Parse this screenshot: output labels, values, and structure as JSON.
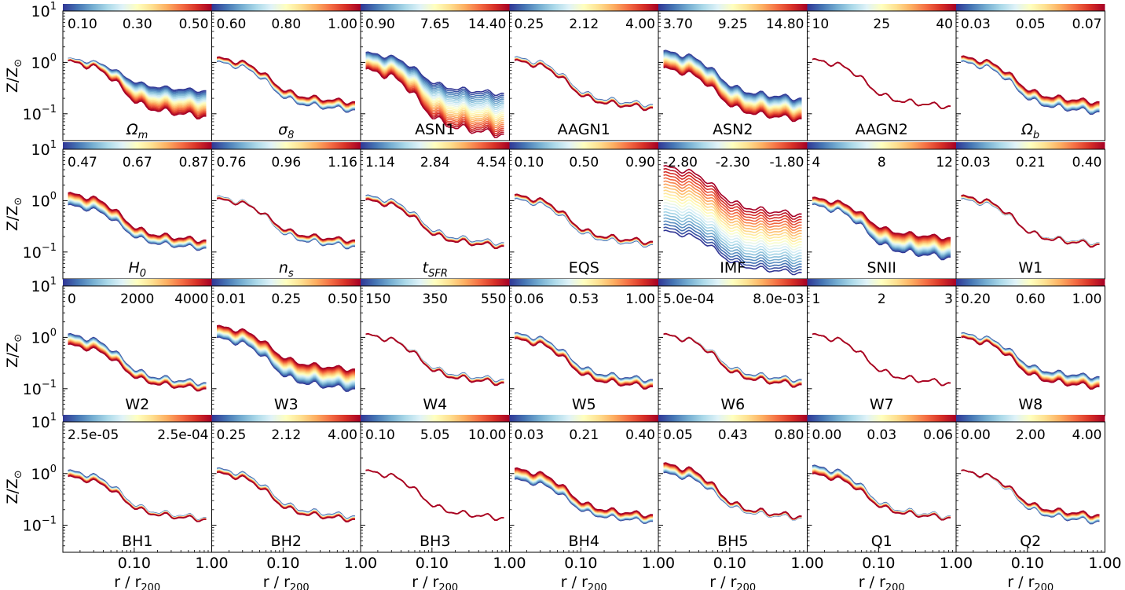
{
  "chart_data": {
    "type": "line",
    "title": "",
    "xlabel": "r / r200",
    "xlabel_main": "r / r",
    "xlabel_sub": "200",
    "ylabel": "Z/Z⊙",
    "ylabel_main": "Z/Z",
    "ylabel_sym": "⊙",
    "xscale": "log",
    "yscale": "log",
    "xlim": [
      0.012,
      1.0
    ],
    "ylim": [
      0.03,
      10
    ],
    "x_ticks": [
      "0.10",
      "1.00"
    ],
    "y_ticks": [
      {
        "base": "10",
        "exp": "1"
      },
      {
        "base": "10",
        "exp": "0"
      },
      {
        "base": "10",
        "exp": "−1"
      }
    ],
    "colormap": "RdYlBu_r",
    "colormap_stops": [
      "#313695",
      "#4575b4",
      "#74add1",
      "#abd9e9",
      "#e0f3f8",
      "#ffffbf",
      "#fee090",
      "#fdae61",
      "#f46d43",
      "#d73027",
      "#a50026"
    ],
    "axis_color": "#000000",
    "panels": [
      {
        "label": "Ωm",
        "lab_main": "Ω",
        "lab_sub": "m",
        "lab_italic": true,
        "cticks": [
          "0.10",
          "0.30",
          "0.50"
        ],
        "r_inner": [
          1.15,
          1.02
        ],
        "r_outer": [
          0.28,
          0.09
        ]
      },
      {
        "label": "σ8",
        "lab_main": "σ",
        "lab_sub": "8",
        "lab_italic": true,
        "cticks": [
          "0.60",
          "0.80",
          "1.00"
        ],
        "r_inner": [
          1.0,
          1.2
        ],
        "r_outer": [
          0.12,
          0.17
        ]
      },
      {
        "label": "ASN1",
        "lab_main": "ASN1",
        "lab_sub": "",
        "lab_italic": false,
        "cticks": [
          "0.90",
          "7.65",
          "14.40"
        ],
        "r_inner": [
          1.5,
          0.7
        ],
        "r_outer": [
          0.25,
          0.04
        ]
      },
      {
        "label": "AAGN1",
        "lab_main": "AAGN1",
        "lab_sub": "",
        "lab_italic": false,
        "cticks": [
          "0.25",
          "2.12",
          "4.00"
        ],
        "r_inner": [
          1.2,
          1.05
        ],
        "r_outer": [
          0.15,
          0.13
        ]
      },
      {
        "label": "ASN2",
        "lab_main": "ASN2",
        "lab_sub": "",
        "lab_italic": false,
        "cticks": [
          "3.70",
          "9.25",
          "14.80"
        ],
        "r_inner": [
          1.6,
          0.75
        ],
        "r_outer": [
          0.2,
          0.08
        ]
      },
      {
        "label": "AAGN2",
        "lab_main": "AAGN2",
        "lab_sub": "",
        "lab_italic": false,
        "cticks": [
          "10",
          "25",
          "40"
        ],
        "r_inner": [
          1.1,
          1.1
        ],
        "r_outer": [
          0.14,
          0.14
        ]
      },
      {
        "label": "Ωb",
        "lab_main": "Ω",
        "lab_sub": "b",
        "lab_italic": true,
        "cticks": [
          "0.03",
          "0.05",
          "0.07"
        ],
        "r_inner": [
          1.0,
          1.25
        ],
        "r_outer": [
          0.11,
          0.17
        ]
      },
      {
        "label": "H0",
        "lab_main": "H",
        "lab_sub": "0",
        "lab_italic": true,
        "cticks": [
          "0.47",
          "0.67",
          "0.87"
        ],
        "r_inner": [
          0.8,
          1.35
        ],
        "r_outer": [
          0.12,
          0.17
        ]
      },
      {
        "label": "ns",
        "lab_main": "n",
        "lab_sub": "s",
        "lab_italic": true,
        "cticks": [
          "0.76",
          "0.96",
          "1.16"
        ],
        "r_inner": [
          1.15,
          1.05
        ],
        "r_outer": [
          0.13,
          0.17
        ]
      },
      {
        "label": "tSFR",
        "lab_main": "t",
        "lab_sub": "SFR",
        "lab_italic": true,
        "cticks": [
          "1.14",
          "2.84",
          "4.54"
        ],
        "r_inner": [
          1.2,
          1.0
        ],
        "r_outer": [
          0.15,
          0.13
        ]
      },
      {
        "label": "EQS",
        "lab_main": "EQS",
        "lab_sub": "",
        "lab_italic": false,
        "cticks": [
          "0.10",
          "0.50",
          "0.90"
        ],
        "r_inner": [
          1.05,
          1.25
        ],
        "r_outer": [
          0.14,
          0.16
        ]
      },
      {
        "label": "IMF",
        "lab_main": "IMF",
        "lab_sub": "",
        "lab_italic": false,
        "cticks": [
          "-2.80",
          "-2.30",
          "-1.80"
        ],
        "r_inner": [
          0.25,
          4.5
        ],
        "r_outer": [
          0.04,
          0.55
        ]
      },
      {
        "label": "SNII",
        "lab_main": "SNII",
        "lab_sub": "",
        "lab_italic": false,
        "cticks": [
          "4",
          "8",
          "12"
        ],
        "r_inner": [
          0.8,
          1.1
        ],
        "r_outer": [
          0.08,
          0.19
        ]
      },
      {
        "label": "W1",
        "lab_main": "W1",
        "lab_sub": "",
        "lab_italic": false,
        "cticks": [
          "0.03",
          "0.21",
          "0.40"
        ],
        "r_inner": [
          1.05,
          1.2
        ],
        "r_outer": [
          0.15,
          0.14
        ]
      },
      {
        "label": "W2",
        "lab_main": "W2",
        "lab_sub": "",
        "lab_italic": false,
        "cticks": [
          "0",
          "2000",
          "4000"
        ],
        "r_inner": [
          1.1,
          0.7
        ],
        "r_outer": [
          0.13,
          0.1
        ]
      },
      {
        "label": "W3",
        "lab_main": "W3",
        "lab_sub": "",
        "lab_italic": false,
        "cticks": [
          "0.01",
          "0.25",
          "0.50"
        ],
        "r_inner": [
          0.95,
          1.6
        ],
        "r_outer": [
          0.1,
          0.24
        ]
      },
      {
        "label": "W4",
        "lab_main": "W4",
        "lab_sub": "",
        "lab_italic": false,
        "cticks": [
          "150",
          "350",
          "550"
        ],
        "r_inner": [
          1.1,
          1.1
        ],
        "r_outer": [
          0.15,
          0.13
        ]
      },
      {
        "label": "W5",
        "lab_main": "W5",
        "lab_sub": "",
        "lab_italic": false,
        "cticks": [
          "0.06",
          "0.53",
          "1.00"
        ],
        "r_inner": [
          1.15,
          0.9
        ],
        "r_outer": [
          0.15,
          0.11
        ]
      },
      {
        "label": "W6",
        "lab_main": "W6",
        "lab_sub": "",
        "lab_italic": false,
        "cticks": [
          "5.0e-04",
          "8.0e-03"
        ],
        "r_inner": [
          1.1,
          1.1
        ],
        "r_outer": [
          0.15,
          0.12
        ]
      },
      {
        "label": "W7",
        "lab_main": "W7",
        "lab_sub": "",
        "lab_italic": false,
        "cticks": [
          "1",
          "2",
          "3"
        ],
        "r_inner": [
          1.1,
          1.1
        ],
        "r_outer": [
          0.13,
          0.13
        ]
      },
      {
        "label": "W8",
        "lab_main": "W8",
        "lab_sub": "",
        "lab_italic": false,
        "cticks": [
          "0.20",
          "0.60",
          "1.00"
        ],
        "r_inner": [
          1.15,
          0.95
        ],
        "r_outer": [
          0.17,
          0.11
        ]
      },
      {
        "label": "BH1",
        "lab_main": "BH1",
        "lab_sub": "",
        "lab_italic": false,
        "cticks": [
          "2.5e-05",
          "2.5e-04"
        ],
        "r_inner": [
          1.1,
          0.85
        ],
        "r_outer": [
          0.14,
          0.13
        ]
      },
      {
        "label": "BH2",
        "lab_main": "BH2",
        "lab_sub": "",
        "lab_italic": false,
        "cticks": [
          "0.25",
          "2.12",
          "4.00"
        ],
        "r_inner": [
          1.2,
          1.0
        ],
        "r_outer": [
          0.15,
          0.13
        ]
      },
      {
        "label": "BH3",
        "lab_main": "BH3",
        "lab_sub": "",
        "lab_italic": false,
        "cticks": [
          "0.10",
          "5.05",
          "10.00"
        ],
        "r_inner": [
          1.1,
          1.1
        ],
        "r_outer": [
          0.14,
          0.14
        ]
      },
      {
        "label": "BH4",
        "lab_main": "BH4",
        "lab_sub": "",
        "lab_italic": false,
        "cticks": [
          "0.03",
          "0.21",
          "0.40"
        ],
        "r_inner": [
          0.75,
          1.2
        ],
        "r_outer": [
          0.12,
          0.16
        ]
      },
      {
        "label": "BH5",
        "lab_main": "BH5",
        "lab_sub": "",
        "lab_italic": false,
        "cticks": [
          "0.05",
          "0.43",
          "0.80"
        ],
        "r_inner": [
          1.0,
          1.5
        ],
        "r_outer": [
          0.14,
          0.15
        ]
      },
      {
        "label": "Q1",
        "lab_main": "Q1",
        "lab_sub": "",
        "lab_italic": false,
        "cticks": [
          "0.00",
          "0.03",
          "0.06"
        ],
        "r_inner": [
          1.35,
          0.95
        ],
        "r_outer": [
          0.15,
          0.14
        ]
      },
      {
        "label": "Q2",
        "lab_main": "Q2",
        "lab_sub": "",
        "lab_italic": false,
        "cticks": [
          "0.00",
          "2.00",
          "4.00"
        ],
        "r_inner": [
          1.1,
          1.1
        ],
        "r_outer": [
          0.12,
          0.16
        ]
      }
    ]
  }
}
